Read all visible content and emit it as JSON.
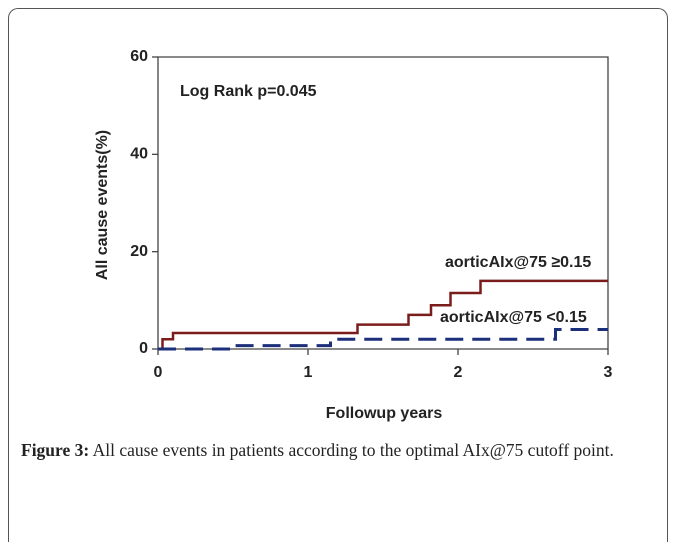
{
  "chart_data": {
    "type": "step",
    "title": "Log Rank p=0.045",
    "xlabel": "Followup years",
    "ylabel": "All cause events(%)",
    "xlim": [
      0,
      3
    ],
    "xticks": [
      0,
      1,
      2,
      3
    ],
    "ylim": [
      0,
      60
    ],
    "yticks": [
      0,
      20,
      40,
      60
    ],
    "series": [
      {
        "name": "aorticAIx@75 ≥0.15",
        "color": "#7b1c1c",
        "dash": false,
        "x": [
          0,
          0.03,
          0.1,
          1.33,
          1.67,
          1.82,
          1.95,
          2.15,
          3
        ],
        "values": [
          0,
          2,
          3.3,
          5,
          7,
          9,
          11.5,
          14,
          14
        ]
      },
      {
        "name": "aorticAIx@75 <0.15",
        "color": "#1c2f7b",
        "dash": true,
        "x": [
          0,
          0.5,
          1.15,
          2.65,
          3
        ],
        "values": [
          0,
          0.7,
          2,
          4,
          4
        ]
      }
    ]
  },
  "caption": {
    "label": "Figure 3:",
    "text": "All cause events in patients according to the optimal AIx@75 cutoff point."
  }
}
